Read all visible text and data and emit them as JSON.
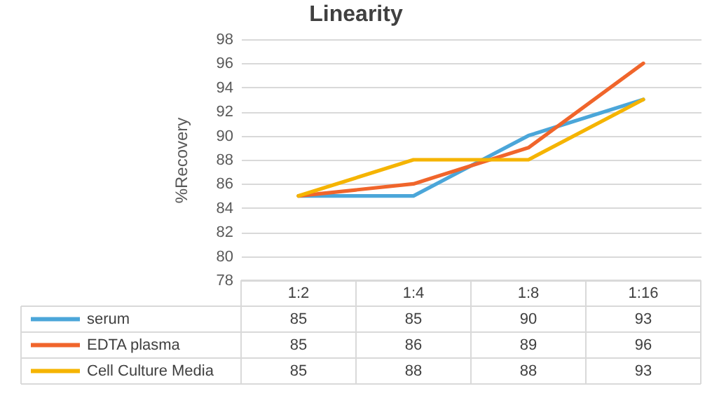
{
  "chart_data": {
    "type": "line",
    "title": "Linearity",
    "ylabel": "%Recovery",
    "categories": [
      "1:2",
      "1:4",
      "1:8",
      "1:16"
    ],
    "series": [
      {
        "name": "serum",
        "color": "#4ba6d9",
        "values": [
          85,
          85,
          90,
          93
        ]
      },
      {
        "name": "EDTA plasma",
        "color": "#f0652b",
        "values": [
          85,
          86,
          89,
          96
        ]
      },
      {
        "name": "Cell Culture Media",
        "color": "#f5b400",
        "values": [
          85,
          88,
          88,
          93
        ]
      }
    ],
    "ylim": [
      78,
      98
    ],
    "yticks": [
      78,
      80,
      82,
      84,
      86,
      88,
      90,
      92,
      94,
      96,
      98
    ],
    "grid": "y",
    "legend": "bottom left",
    "data_labels": true
  }
}
